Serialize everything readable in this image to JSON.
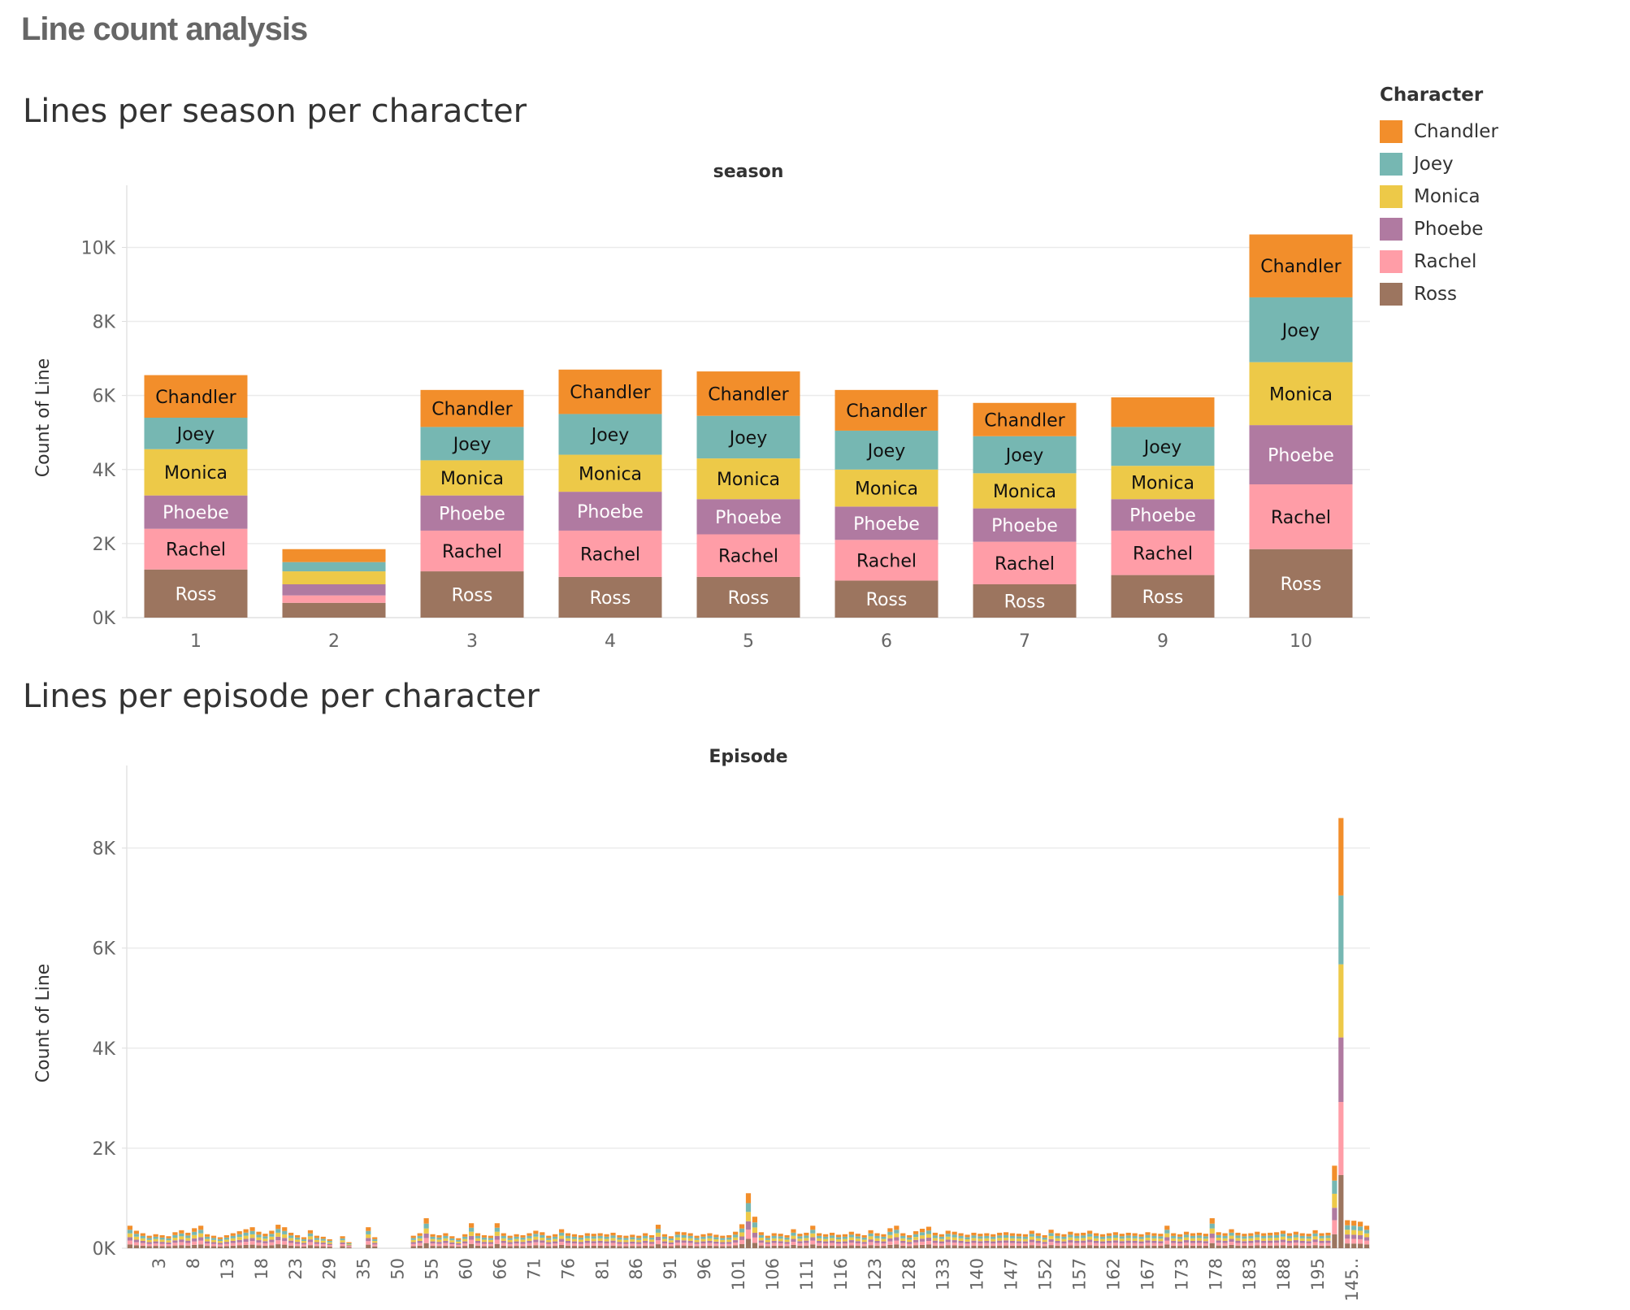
{
  "dashboard_title": "Line count analysis",
  "legend": {
    "title": "Character",
    "items": [
      {
        "name": "Chandler",
        "color": "#F28E2B"
      },
      {
        "name": "Joey",
        "color": "#76B7B2"
      },
      {
        "name": "Monica",
        "color": "#EDC948"
      },
      {
        "name": "Phoebe",
        "color": "#B07AA1"
      },
      {
        "name": "Rachel",
        "color": "#FF9DA7"
      },
      {
        "name": "Ross",
        "color": "#9C755F"
      }
    ]
  },
  "chart_data": [
    {
      "type": "bar",
      "stacked": true,
      "title": "Lines per season per character",
      "xlabel": "season",
      "ylabel": "Count of Line",
      "ylim": [
        0,
        10800
      ],
      "yticks": [
        0,
        2000,
        4000,
        6000,
        8000,
        10000
      ],
      "ytick_labels": [
        "0K",
        "2K",
        "4K",
        "6K",
        "8K",
        "10K"
      ],
      "categories": [
        "1",
        "2",
        "3",
        "4",
        "5",
        "6",
        "7",
        "9",
        "10"
      ],
      "series": [
        {
          "name": "Ross",
          "values": [
            1300,
            400,
            1250,
            1100,
            1100,
            1000,
            900,
            1150,
            1850
          ],
          "labels": [
            "Ross",
            "",
            "Ross",
            "Ross",
            "Ross",
            "Ross",
            "Ross",
            "Ross",
            "Ross"
          ]
        },
        {
          "name": "Rachel",
          "values": [
            1100,
            200,
            1100,
            1250,
            1150,
            1100,
            1150,
            1200,
            1750
          ],
          "labels": [
            "Rachel",
            "",
            "Rachel",
            "Rachel",
            "Rachel",
            "Rachel",
            "Rachel",
            "Rachel",
            "Rachel"
          ]
        },
        {
          "name": "Phoebe",
          "values": [
            900,
            300,
            950,
            1050,
            950,
            900,
            900,
            850,
            1600
          ],
          "labels": [
            "Phoebe",
            "",
            "Phoebe",
            "Phoebe",
            "Phoebe",
            "Phoebe",
            "Phoebe",
            "Phoebe",
            "Phoebe"
          ]
        },
        {
          "name": "Monica",
          "values": [
            1250,
            350,
            950,
            1000,
            1100,
            1000,
            950,
            900,
            1700
          ],
          "labels": [
            "Monica",
            "",
            "Monica",
            "Monica",
            "Monica",
            "Monica",
            "Monica",
            "Monica",
            "Monica"
          ]
        },
        {
          "name": "Joey",
          "values": [
            850,
            250,
            900,
            1100,
            1150,
            1050,
            1000,
            1050,
            1750
          ],
          "labels": [
            "Joey",
            "",
            "Joey",
            "Joey",
            "Joey",
            "Joey",
            "Joey",
            "Joey",
            "Joey"
          ]
        },
        {
          "name": "Chandler",
          "values": [
            1150,
            350,
            1000,
            1200,
            1200,
            1100,
            900,
            800,
            1700
          ],
          "labels": [
            "Chandler",
            "",
            "Chandler",
            "Chandler",
            "Chandler",
            "Chandler",
            "Chandler",
            "",
            "Chandler"
          ]
        }
      ]
    },
    {
      "type": "bar",
      "stacked": true,
      "title": "Lines per episode per character",
      "xlabel": "Episode",
      "ylabel": "Count of Line",
      "ylim": [
        0,
        9000
      ],
      "yticks": [
        0,
        2000,
        4000,
        6000,
        8000
      ],
      "ytick_labels": [
        "0K",
        "2K",
        "4K",
        "6K",
        "8K"
      ],
      "tick_labels": [
        "3",
        "8",
        "13",
        "18",
        "23",
        "29",
        "35",
        "50",
        "55",
        "60",
        "66",
        "71",
        "76",
        "81",
        "86",
        "91",
        "96",
        "101",
        "106",
        "111",
        "116",
        "123",
        "128",
        "133",
        "140",
        "147",
        "152",
        "157",
        "162",
        "167",
        "173",
        "178",
        "183",
        "188",
        "195",
        "145.."
      ],
      "episode_totals": [
        450,
        350,
        300,
        250,
        280,
        260,
        240,
        320,
        360,
        310,
        400,
        450,
        280,
        250,
        220,
        260,
        300,
        340,
        380,
        420,
        330,
        290,
        350,
        470,
        420,
        310,
        260,
        220,
        360,
        250,
        230,
        180,
        0,
        240,
        120,
        0,
        0,
        420,
        220,
        0,
        0,
        0,
        0,
        0,
        250,
        300,
        600,
        280,
        260,
        300,
        240,
        200,
        280,
        500,
        300,
        260,
        250,
        500,
        300,
        250,
        280,
        260,
        300,
        350,
        320,
        250,
        280,
        380,
        300,
        280,
        260,
        300,
        290,
        300,
        280,
        310,
        260,
        250,
        270,
        250,
        300,
        260,
        470,
        280,
        240,
        330,
        320,
        300,
        250,
        280,
        300,
        270,
        250,
        260,
        330,
        480,
        1100,
        630,
        320,
        250,
        300,
        290,
        260,
        380,
        290,
        310,
        450,
        300,
        280,
        310,
        270,
        280,
        330,
        290,
        260,
        360,
        300,
        280,
        400,
        450,
        300,
        260,
        340,
        390,
        430,
        310,
        280,
        350,
        330,
        300,
        270,
        310,
        290,
        300,
        280,
        310,
        320,
        300,
        290,
        280,
        350,
        300,
        260,
        370,
        300,
        280,
        330,
        300,
        310,
        350,
        300,
        280,
        300,
        320,
        290,
        310,
        300,
        280,
        320,
        300,
        290,
        450,
        300,
        280,
        330,
        300,
        310,
        290,
        600,
        320,
        300,
        380,
        310,
        290,
        300,
        330,
        300,
        310,
        320,
        350,
        300,
        330,
        300,
        290,
        360,
        300,
        310,
        1650,
        8600,
        560,
        550,
        530,
        450
      ]
    }
  ]
}
